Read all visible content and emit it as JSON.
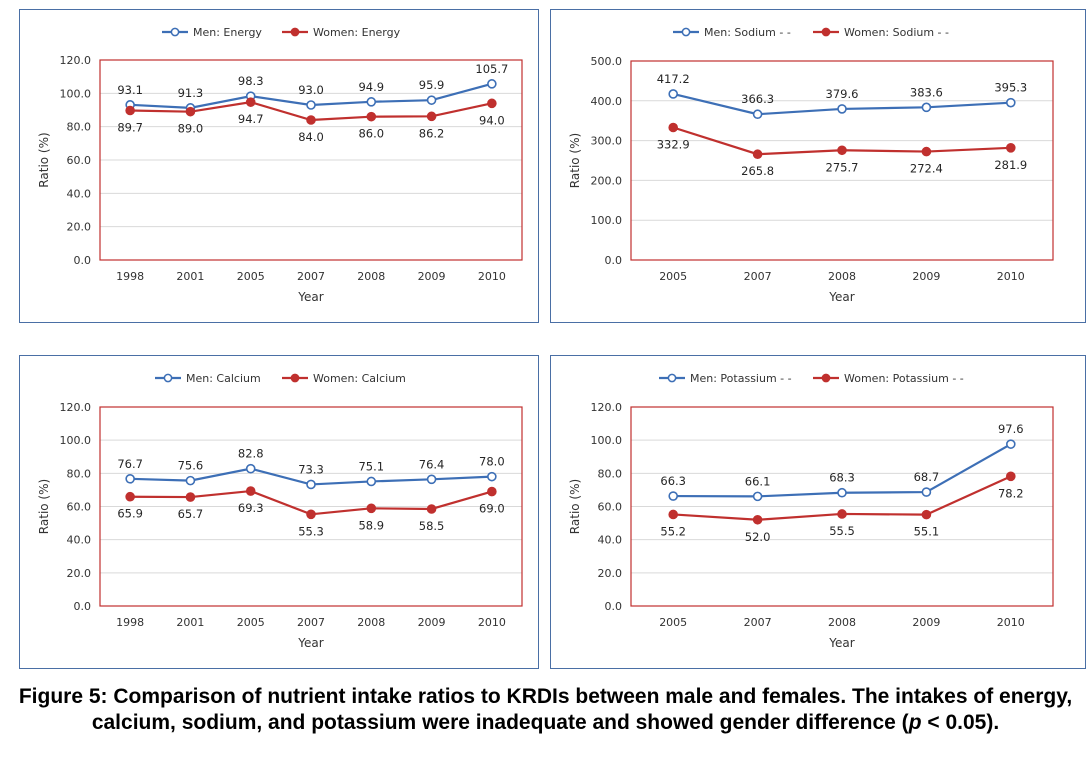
{
  "caption": {
    "part1": "Figure 5: Comparison of nutrient intake ratios to KRDIs between male and females. The intakes of energy, calcium, sodium, and potassium were inadequate and showed gender difference (",
    "p": "p",
    "part2": " < 0.05)."
  },
  "colors": {
    "men": "#3d6fb6",
    "women": "#c0302e",
    "plot_border": "#c0302e",
    "grid": "#d9d9d9",
    "panel_border": "#4a6fa5"
  },
  "chart_data": [
    {
      "type": "line",
      "panel": "energy",
      "title": "",
      "xlabel": "Year",
      "ylabel": "Ratio (%)",
      "categories": [
        "1998",
        "2001",
        "2005",
        "2007",
        "2008",
        "2009",
        "2010"
      ],
      "ylim": [
        0,
        120
      ],
      "yticks": [
        "0.0",
        "20.0",
        "40.0",
        "60.0",
        "80.0",
        "100.0",
        "120.0"
      ],
      "grid": true,
      "legend_position": "top",
      "series": [
        {
          "name": "Men: Energy",
          "marker": "open-circle",
          "values": [
            93.1,
            91.3,
            98.3,
            93.0,
            94.9,
            95.9,
            105.7
          ],
          "labels": [
            "93.1",
            "91.3",
            "98.3",
            "93.0",
            "94.9",
            "95.9",
            "105.7"
          ]
        },
        {
          "name": "Women: Energy",
          "marker": "filled-circle",
          "values": [
            89.7,
            89.0,
            94.7,
            84.0,
            86.0,
            86.2,
            94.0
          ],
          "labels": [
            "89.7",
            "89.0",
            "94.7",
            "84.0",
            "86.0",
            "86.2",
            "94.0"
          ]
        }
      ]
    },
    {
      "type": "line",
      "panel": "sodium",
      "title": "",
      "xlabel": "Year",
      "ylabel": "Ratio (%)",
      "categories": [
        "2005",
        "2007",
        "2008",
        "2009",
        "2010"
      ],
      "ylim": [
        0,
        500
      ],
      "yticks": [
        "0.0",
        "100.0",
        "200.0",
        "300.0",
        "400.0",
        "500.0"
      ],
      "grid": true,
      "legend_position": "top",
      "series": [
        {
          "name": "Men: Sodium  - -",
          "marker": "open-circle",
          "values": [
            417.2,
            366.3,
            379.6,
            383.6,
            395.3
          ],
          "labels": [
            "417.2",
            "366.3",
            "379.6",
            "383.6",
            "395.3"
          ]
        },
        {
          "name": "Women: Sodium  - -",
          "marker": "filled-circle",
          "values": [
            332.9,
            265.8,
            275.7,
            272.4,
            281.9
          ],
          "labels": [
            "332.9",
            "265.8",
            "275.7",
            "272.4",
            "281.9"
          ]
        }
      ]
    },
    {
      "type": "line",
      "panel": "calcium",
      "title": "",
      "xlabel": "Year",
      "ylabel": "Ratio (%)",
      "categories": [
        "1998",
        "2001",
        "2005",
        "2007",
        "2008",
        "2009",
        "2010"
      ],
      "ylim": [
        0,
        120
      ],
      "yticks": [
        "0.0",
        "20.0",
        "40.0",
        "60.0",
        "80.0",
        "100.0",
        "120.0"
      ],
      "grid": true,
      "legend_position": "top",
      "series": [
        {
          "name": "Men: Calcium",
          "marker": "open-circle",
          "values": [
            76.7,
            75.6,
            82.8,
            73.3,
            75.1,
            76.4,
            78.0
          ],
          "labels": [
            "76.7",
            "75.6",
            "82.8",
            "73.3",
            "75.1",
            "76.4",
            "78.0"
          ]
        },
        {
          "name": "Women: Calcium",
          "marker": "filled-circle",
          "values": [
            65.9,
            65.7,
            69.3,
            55.3,
            58.9,
            58.5,
            69.0
          ],
          "labels": [
            "65.9",
            "65.7",
            "69.3",
            "55.3",
            "58.9",
            "58.5",
            "69.0"
          ]
        }
      ]
    },
    {
      "type": "line",
      "panel": "potassium",
      "title": "",
      "xlabel": "Year",
      "ylabel": "Ratio (%)",
      "categories": [
        "2005",
        "2007",
        "2008",
        "2009",
        "2010"
      ],
      "ylim": [
        0,
        120
      ],
      "yticks": [
        "0.0",
        "20.0",
        "40.0",
        "60.0",
        "80.0",
        "100.0",
        "120.0"
      ],
      "grid": true,
      "legend_position": "top",
      "series": [
        {
          "name": "Men: Potassium - -",
          "marker": "open-circle",
          "values": [
            66.3,
            66.1,
            68.3,
            68.7,
            97.6
          ],
          "labels": [
            "66.3",
            "66.1",
            "68.3",
            "68.7",
            "97.6"
          ]
        },
        {
          "name": "Women: Potassium  - -",
          "marker": "filled-circle",
          "values": [
            55.2,
            52.0,
            55.5,
            55.1,
            78.2
          ],
          "labels": [
            "55.2",
            "52.0",
            "55.5",
            "55.1",
            "78.2"
          ]
        }
      ]
    }
  ]
}
